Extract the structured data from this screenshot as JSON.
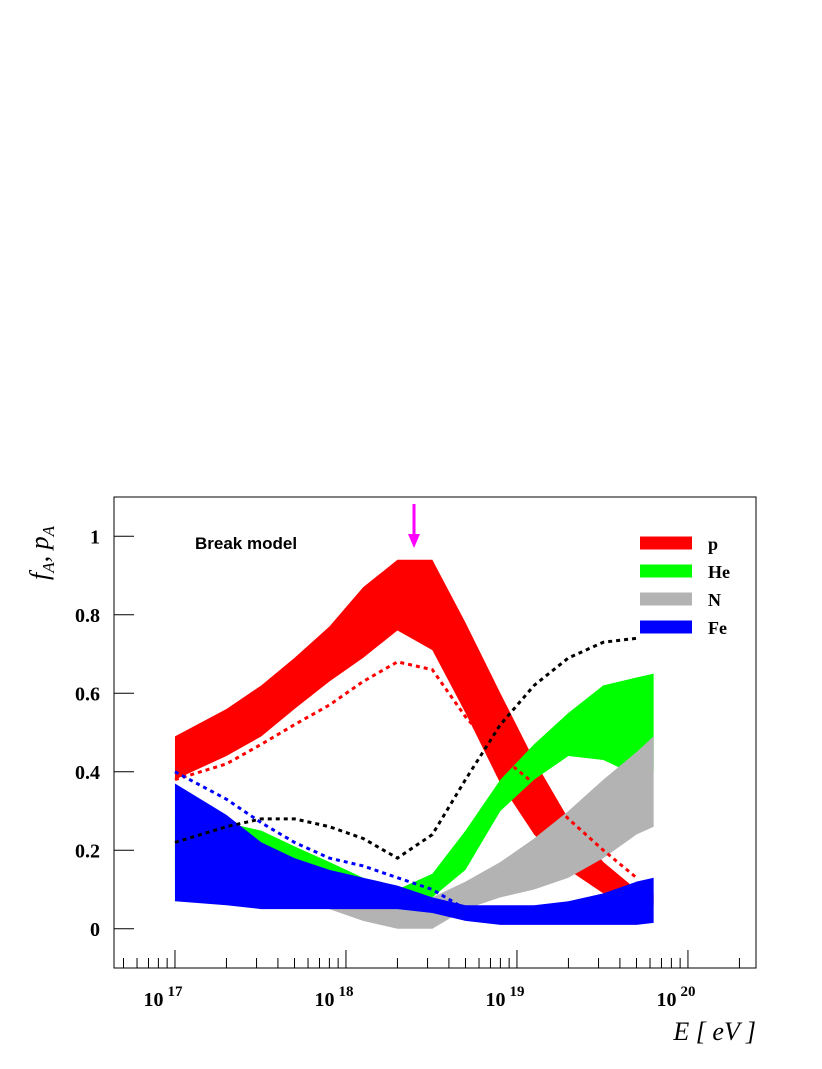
{
  "chart_data": {
    "type": "band",
    "annotation": "Break model",
    "xlabel": "E [ eV ]",
    "ylabel": [
      "f",
      "A",
      ", p",
      "A"
    ],
    "xscale": "log",
    "xlim": [
      4.4e+16,
      2.5e+20
    ],
    "ylim": [
      -0.1,
      1.1
    ],
    "xticks": [
      {
        "value": 1e+17,
        "label": "10",
        "exponent": "17"
      },
      {
        "value": 1e+18,
        "label": "10",
        "exponent": "18"
      },
      {
        "value": 1e+19,
        "label": "10",
        "exponent": "19"
      },
      {
        "value": 1e+20,
        "label": "10",
        "exponent": "20"
      }
    ],
    "yticks": [
      0,
      0.2,
      0.4,
      0.6,
      0.8,
      1
    ],
    "legend": "top-right",
    "arrow": {
      "x": 2.5e+18,
      "color": "#ff00ff"
    },
    "x": [
      1e+17,
      2e+17,
      3.2e+17,
      5e+17,
      8e+17,
      1.26e+18,
      2e+18,
      3.2e+18,
      5e+18,
      8e+18,
      1.26e+19,
      2e+19,
      3.2e+19,
      5e+19,
      6.3e+19
    ],
    "series": [
      {
        "name": "p",
        "color": "#ff0000",
        "upper": [
          0.49,
          0.56,
          0.62,
          0.69,
          0.77,
          0.87,
          0.94,
          0.94,
          0.78,
          0.6,
          0.43,
          0.28,
          0.17,
          0.1,
          0.09
        ],
        "lower": [
          0.38,
          0.44,
          0.49,
          0.56,
          0.63,
          0.69,
          0.76,
          0.71,
          0.55,
          0.37,
          0.24,
          0.15,
          0.09,
          0.07,
          0.06
        ]
      },
      {
        "name": "He",
        "color": "#00ff00",
        "upper": [
          0.29,
          0.27,
          0.25,
          0.21,
          0.17,
          0.13,
          0.1,
          0.14,
          0.25,
          0.38,
          0.47,
          0.55,
          0.62,
          0.64,
          0.65
        ],
        "lower": [
          0.13,
          0.15,
          0.14,
          0.12,
          0.1,
          0.08,
          0.06,
          0.08,
          0.15,
          0.3,
          0.38,
          0.44,
          0.43,
          0.39,
          0.4
        ]
      },
      {
        "name": "N",
        "color": "#b3b3b3",
        "upper": [
          0.19,
          0.17,
          0.16,
          0.14,
          0.12,
          0.09,
          0.06,
          0.08,
          0.12,
          0.17,
          0.23,
          0.3,
          0.38,
          0.45,
          0.49
        ],
        "lower": [
          0.12,
          0.12,
          0.1,
          0.08,
          0.05,
          0.02,
          0.0,
          0.0,
          0.05,
          0.08,
          0.1,
          0.13,
          0.18,
          0.24,
          0.26
        ]
      },
      {
        "name": "Fe",
        "color": "#0000ff",
        "upper": [
          0.37,
          0.29,
          0.22,
          0.18,
          0.15,
          0.13,
          0.11,
          0.08,
          0.06,
          0.06,
          0.06,
          0.07,
          0.09,
          0.12,
          0.13
        ],
        "lower": [
          0.07,
          0.06,
          0.05,
          0.05,
          0.05,
          0.05,
          0.05,
          0.04,
          0.02,
          0.01,
          0.01,
          0.01,
          0.01,
          0.01,
          0.015
        ]
      }
    ],
    "lines": [
      {
        "color": "#000000",
        "values": [
          0.22,
          0.26,
          0.28,
          0.28,
          0.26,
          0.23,
          0.18,
          0.24,
          0.38,
          0.52,
          0.62,
          0.69,
          0.73,
          0.74,
          null
        ]
      },
      {
        "color": "#ff0000",
        "values": [
          0.38,
          0.42,
          0.47,
          0.52,
          0.57,
          0.63,
          0.68,
          0.66,
          0.54,
          0.44,
          0.37,
          0.28,
          0.2,
          0.13,
          null
        ]
      },
      {
        "color": "#0000ff",
        "values": [
          0.4,
          0.33,
          0.27,
          0.22,
          0.18,
          0.16,
          0.13,
          0.1,
          0.05,
          null,
          null,
          null,
          null,
          null,
          null
        ]
      }
    ]
  }
}
